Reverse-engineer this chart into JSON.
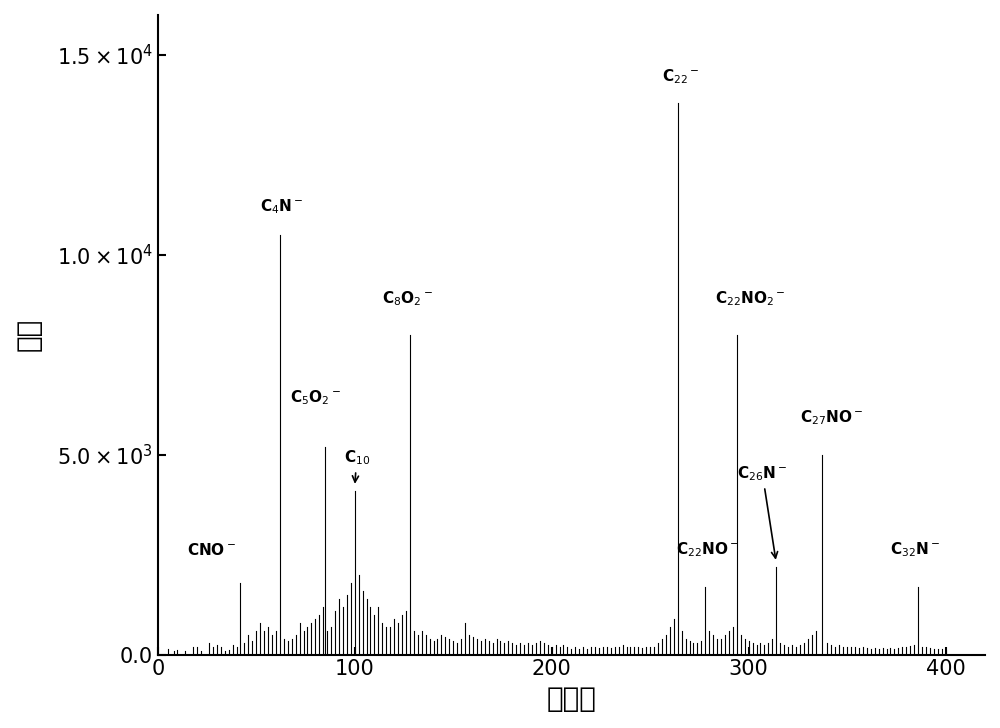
{
  "xlim": [
    0,
    420
  ],
  "ylim": [
    0,
    16000
  ],
  "xticks": [
    0,
    100,
    200,
    300,
    400
  ],
  "yticks": [
    0,
    5000,
    10000,
    15000
  ],
  "background_color": "#ffffff",
  "line_color": "#000000",
  "peaks": [
    [
      5,
      150
    ],
    [
      8,
      100
    ],
    [
      10,
      120
    ],
    [
      14,
      80
    ],
    [
      18,
      200
    ],
    [
      20,
      180
    ],
    [
      22,
      100
    ],
    [
      26,
      300
    ],
    [
      28,
      200
    ],
    [
      30,
      250
    ],
    [
      32,
      180
    ],
    [
      34,
      100
    ],
    [
      36,
      120
    ],
    [
      38,
      250
    ],
    [
      40,
      200
    ],
    [
      42,
      1800
    ],
    [
      44,
      300
    ],
    [
      46,
      500
    ],
    [
      48,
      350
    ],
    [
      50,
      600
    ],
    [
      52,
      800
    ],
    [
      54,
      600
    ],
    [
      56,
      700
    ],
    [
      58,
      500
    ],
    [
      60,
      600
    ],
    [
      62,
      10500
    ],
    [
      64,
      400
    ],
    [
      66,
      350
    ],
    [
      68,
      400
    ],
    [
      70,
      500
    ],
    [
      72,
      800
    ],
    [
      74,
      600
    ],
    [
      76,
      700
    ],
    [
      78,
      800
    ],
    [
      80,
      900
    ],
    [
      82,
      1000
    ],
    [
      84,
      1200
    ],
    [
      85,
      5200
    ],
    [
      86,
      600
    ],
    [
      88,
      700
    ],
    [
      90,
      1100
    ],
    [
      92,
      1400
    ],
    [
      94,
      1200
    ],
    [
      96,
      1500
    ],
    [
      98,
      1800
    ],
    [
      100,
      4100
    ],
    [
      102,
      2000
    ],
    [
      104,
      1600
    ],
    [
      106,
      1400
    ],
    [
      108,
      1200
    ],
    [
      110,
      1000
    ],
    [
      112,
      1200
    ],
    [
      114,
      800
    ],
    [
      116,
      700
    ],
    [
      118,
      700
    ],
    [
      120,
      900
    ],
    [
      122,
      800
    ],
    [
      124,
      1000
    ],
    [
      126,
      1100
    ],
    [
      128,
      8000
    ],
    [
      130,
      600
    ],
    [
      132,
      500
    ],
    [
      134,
      600
    ],
    [
      136,
      500
    ],
    [
      138,
      400
    ],
    [
      140,
      350
    ],
    [
      142,
      400
    ],
    [
      144,
      500
    ],
    [
      146,
      450
    ],
    [
      148,
      400
    ],
    [
      150,
      350
    ],
    [
      152,
      300
    ],
    [
      154,
      400
    ],
    [
      156,
      800
    ],
    [
      158,
      500
    ],
    [
      160,
      450
    ],
    [
      162,
      400
    ],
    [
      164,
      350
    ],
    [
      166,
      400
    ],
    [
      168,
      350
    ],
    [
      170,
      300
    ],
    [
      172,
      400
    ],
    [
      174,
      350
    ],
    [
      176,
      300
    ],
    [
      178,
      350
    ],
    [
      180,
      300
    ],
    [
      182,
      250
    ],
    [
      184,
      300
    ],
    [
      186,
      250
    ],
    [
      188,
      300
    ],
    [
      190,
      250
    ],
    [
      192,
      300
    ],
    [
      194,
      350
    ],
    [
      196,
      300
    ],
    [
      198,
      250
    ],
    [
      200,
      200
    ],
    [
      202,
      250
    ],
    [
      204,
      200
    ],
    [
      206,
      250
    ],
    [
      208,
      200
    ],
    [
      210,
      150
    ],
    [
      212,
      200
    ],
    [
      214,
      150
    ],
    [
      216,
      200
    ],
    [
      218,
      150
    ],
    [
      220,
      200
    ],
    [
      222,
      180
    ],
    [
      224,
      160
    ],
    [
      226,
      200
    ],
    [
      228,
      180
    ],
    [
      230,
      160
    ],
    [
      232,
      180
    ],
    [
      234,
      200
    ],
    [
      236,
      250
    ],
    [
      238,
      200
    ],
    [
      240,
      180
    ],
    [
      242,
      200
    ],
    [
      244,
      180
    ],
    [
      246,
      160
    ],
    [
      248,
      200
    ],
    [
      250,
      180
    ],
    [
      252,
      200
    ],
    [
      254,
      300
    ],
    [
      256,
      400
    ],
    [
      258,
      500
    ],
    [
      260,
      700
    ],
    [
      262,
      900
    ],
    [
      264,
      13800
    ],
    [
      266,
      600
    ],
    [
      268,
      400
    ],
    [
      270,
      350
    ],
    [
      272,
      300
    ],
    [
      274,
      300
    ],
    [
      276,
      350
    ],
    [
      278,
      1700
    ],
    [
      280,
      600
    ],
    [
      282,
      500
    ],
    [
      284,
      400
    ],
    [
      286,
      400
    ],
    [
      288,
      500
    ],
    [
      290,
      600
    ],
    [
      292,
      700
    ],
    [
      294,
      8000
    ],
    [
      296,
      500
    ],
    [
      298,
      400
    ],
    [
      300,
      350
    ],
    [
      302,
      300
    ],
    [
      304,
      250
    ],
    [
      306,
      300
    ],
    [
      308,
      250
    ],
    [
      310,
      300
    ],
    [
      312,
      400
    ],
    [
      314,
      2200
    ],
    [
      316,
      300
    ],
    [
      318,
      250
    ],
    [
      320,
      200
    ],
    [
      322,
      250
    ],
    [
      324,
      200
    ],
    [
      326,
      250
    ],
    [
      328,
      300
    ],
    [
      330,
      400
    ],
    [
      332,
      500
    ],
    [
      334,
      600
    ],
    [
      337,
      5000
    ],
    [
      340,
      300
    ],
    [
      342,
      250
    ],
    [
      344,
      200
    ],
    [
      346,
      250
    ],
    [
      348,
      200
    ],
    [
      350,
      180
    ],
    [
      352,
      200
    ],
    [
      354,
      180
    ],
    [
      356,
      160
    ],
    [
      358,
      180
    ],
    [
      360,
      160
    ],
    [
      362,
      150
    ],
    [
      364,
      160
    ],
    [
      366,
      150
    ],
    [
      368,
      160
    ],
    [
      370,
      150
    ],
    [
      372,
      160
    ],
    [
      374,
      150
    ],
    [
      376,
      160
    ],
    [
      378,
      180
    ],
    [
      380,
      200
    ],
    [
      382,
      220
    ],
    [
      384,
      240
    ],
    [
      386,
      1700
    ],
    [
      388,
      200
    ],
    [
      390,
      180
    ],
    [
      392,
      160
    ],
    [
      394,
      150
    ],
    [
      396,
      140
    ],
    [
      398,
      130
    ],
    [
      400,
      120
    ]
  ]
}
